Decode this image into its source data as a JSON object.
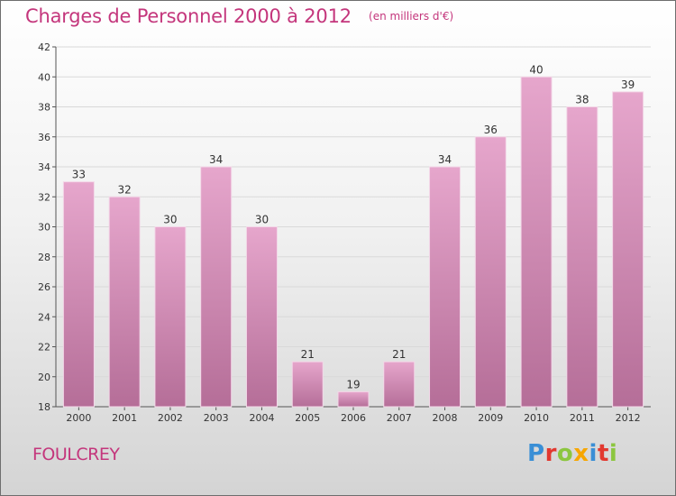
{
  "header": {
    "title": "Charges de Personnel 2000 à 2012",
    "subtitle": "(en milliers d'€)"
  },
  "footer": {
    "location": "FOULCREY",
    "brand": "Proxiti",
    "brand_letters": [
      {
        "ch": "P",
        "color": "#3a8fd6"
      },
      {
        "ch": "r",
        "color": "#e2382f"
      },
      {
        "ch": "o",
        "color": "#8cc63f"
      },
      {
        "ch": "x",
        "color": "#f7a600"
      },
      {
        "ch": "i",
        "color": "#3a8fd6"
      },
      {
        "ch": "t",
        "color": "#e2382f"
      },
      {
        "ch": "i",
        "color": "#8cc63f"
      }
    ]
  },
  "colors": {
    "accent": "#c4367c",
    "bar_top": "#e6a6cc",
    "bar_bottom": "#b56e98",
    "grid": "#d9d9d9"
  },
  "chart_data": {
    "type": "bar",
    "title": "Charges de Personnel 2000 à 2012",
    "subtitle": "(en milliers d'€)",
    "xlabel": "",
    "ylabel": "",
    "categories": [
      "2000",
      "2001",
      "2002",
      "2003",
      "2004",
      "2005",
      "2006",
      "2007",
      "2008",
      "2009",
      "2010",
      "2011",
      "2012"
    ],
    "values": [
      33,
      32,
      30,
      34,
      30,
      21,
      19,
      21,
      34,
      36,
      40,
      38,
      39
    ],
    "ylim": [
      18,
      42
    ],
    "yticks": [
      18,
      20,
      22,
      24,
      26,
      28,
      30,
      32,
      34,
      36,
      38,
      40,
      42
    ],
    "grid": true,
    "legend": "none"
  }
}
